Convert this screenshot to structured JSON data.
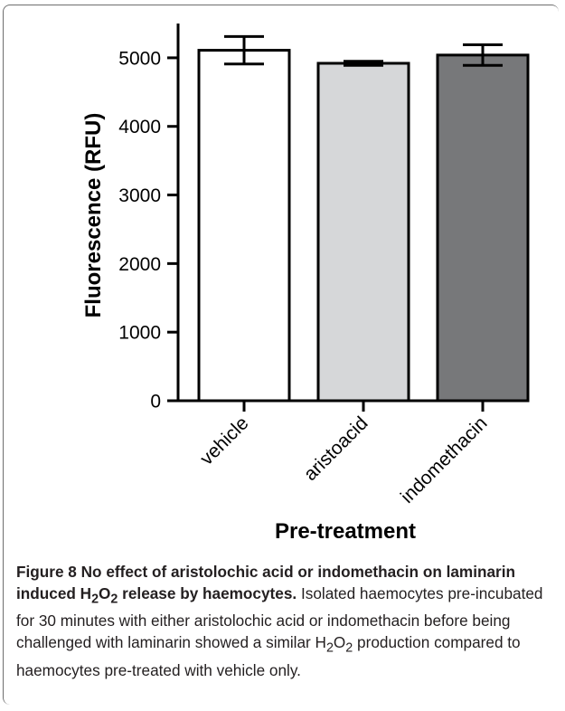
{
  "chart_data": {
    "type": "bar",
    "categories": [
      "vehicle",
      "aristoacid",
      "indomethacin"
    ],
    "values": [
      5110,
      4920,
      5040
    ],
    "error": [
      200,
      30,
      150
    ],
    "colors": [
      "#ffffff",
      "#d6d7d9",
      "#77787a"
    ],
    "xlabel": "Pre-treatment",
    "ylabel": "Fluorescence (RFU)",
    "ylim": [
      0,
      5500
    ],
    "yticks": [
      0,
      1000,
      2000,
      3000,
      4000,
      5000
    ]
  },
  "caption": {
    "figure_label": "Figure 8",
    "title_part1": " No effect of aristolochic acid or indomethacin on laminarin induced H",
    "title_sub1": "2",
    "title_mid": "O",
    "title_sub2": "2",
    "title_part2": " release by haemocytes.",
    "body_part1": " Isolated haemocytes pre-incubated for 30 minutes with either aristolochic acid or indomethacin before being challenged with laminarin showed a similar H",
    "body_sub1": "2",
    "body_mid": "O",
    "body_sub2": "2",
    "body_part2": " production compared to haemocytes pre-treated with vehicle only."
  }
}
